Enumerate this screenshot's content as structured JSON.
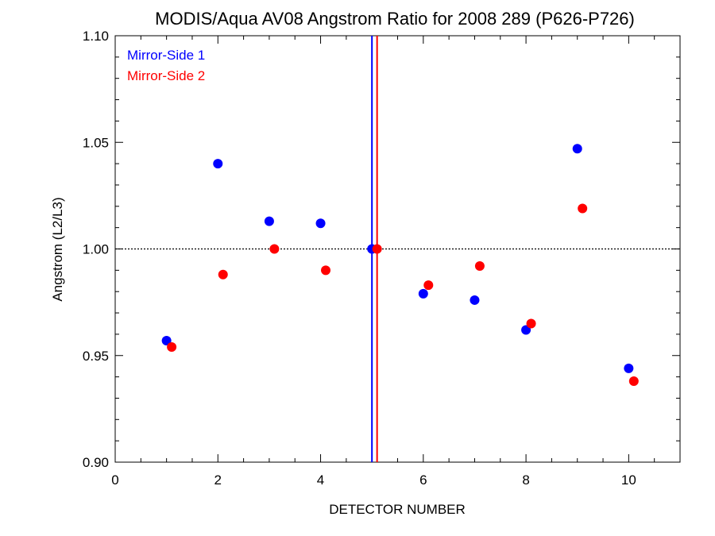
{
  "chart_data": {
    "type": "scatter",
    "title": "MODIS/Aqua AV08 Angstrom Ratio for 2008 289 (P626-P726)",
    "xlabel": "DETECTOR NUMBER",
    "ylabel": "Angstrom (L2/L3)",
    "xlim": [
      0,
      11
    ],
    "ylim": [
      0.9,
      1.1
    ],
    "xticks": [
      0,
      2,
      4,
      6,
      8,
      10
    ],
    "xtick_labels": [
      "0",
      "2",
      "4",
      "6",
      "8",
      "10"
    ],
    "yticks": [
      0.9,
      0.95,
      1.0,
      1.05,
      1.1
    ],
    "ytick_labels": [
      "0.90",
      "0.95",
      "1.00",
      "1.05",
      "1.10"
    ],
    "reference_line_y": 1.0,
    "legend_position": "top-left",
    "series": [
      {
        "name": "Mirror-Side 1",
        "color": "#0000ff",
        "x": [
          1,
          2,
          3,
          4,
          5,
          6,
          7,
          8,
          9,
          10
        ],
        "y": [
          0.957,
          1.04,
          1.013,
          1.012,
          1.0,
          0.979,
          0.976,
          0.962,
          1.047,
          0.944
        ],
        "vline_x": 5.0
      },
      {
        "name": "Mirror-Side 2",
        "color": "#ff0000",
        "x": [
          1.1,
          2.1,
          3.1,
          4.1,
          5.1,
          6.1,
          7.1,
          8.1,
          9.1,
          10.1
        ],
        "y": [
          0.954,
          0.988,
          1.0,
          0.99,
          1.0,
          0.983,
          0.992,
          0.965,
          1.019,
          0.938
        ],
        "vline_x": 5.1
      }
    ]
  }
}
